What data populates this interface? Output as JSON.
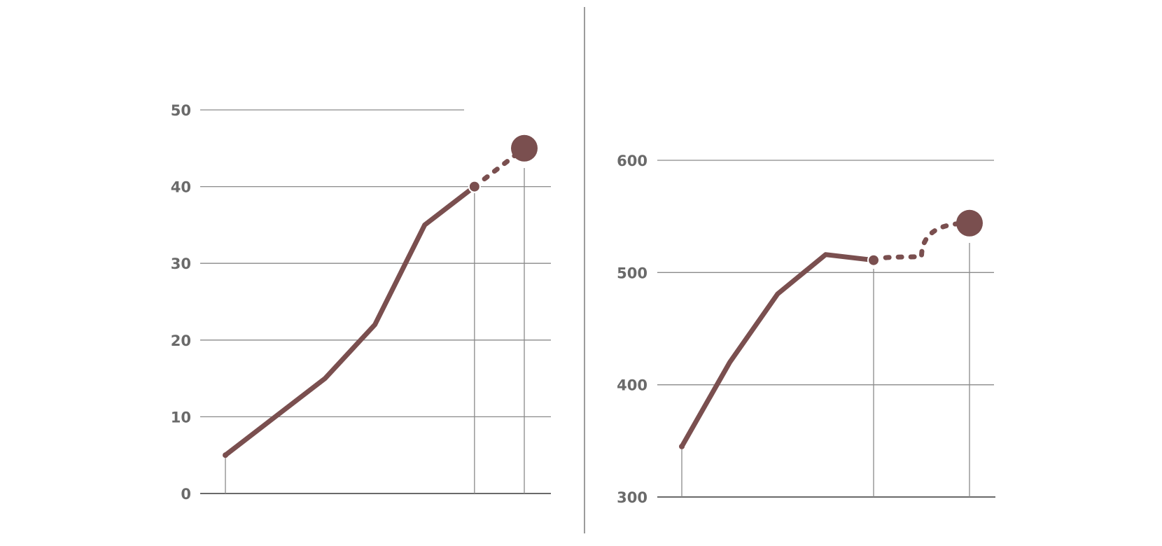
{
  "colors": {
    "series": "#7a4f4f",
    "grid": "#8a8a8a",
    "axis": "#6a6a6a",
    "label": "#6a6a6a"
  },
  "chart_data": [
    {
      "type": "line",
      "title": "",
      "xlabel": "",
      "ylabel": "",
      "ylim": [
        0,
        50
      ],
      "yticks": [
        0,
        10,
        20,
        30,
        40,
        50
      ],
      "yticklabels": [
        "0",
        "10",
        "20",
        "30",
        "40",
        "50"
      ],
      "grid": true,
      "series": [
        {
          "actual": [
            {
              "x": 0,
              "y": 5
            },
            {
              "x": 2,
              "y": 15
            },
            {
              "x": 3,
              "y": 22
            },
            {
              "x": 4,
              "y": 35
            },
            {
              "x": 5,
              "y": 40
            }
          ],
          "projected": [
            {
              "x": 5,
              "y": 40
            },
            {
              "x": 6,
              "y": 45
            }
          ]
        }
      ]
    },
    {
      "type": "line",
      "title": "",
      "xlabel": "",
      "ylabel": "",
      "ylim": [
        300,
        600
      ],
      "yticks": [
        300,
        400,
        500,
        600
      ],
      "yticklabels": [
        "300",
        "400",
        "500",
        "600"
      ],
      "grid": true,
      "series": [
        {
          "actual": [
            {
              "x": 0,
              "y": 345
            },
            {
              "x": 1,
              "y": 420
            },
            {
              "x": 2,
              "y": 481
            },
            {
              "x": 3,
              "y": 516
            },
            {
              "x": 4,
              "y": 511
            }
          ],
          "projected": [
            {
              "x": 4,
              "y": 511
            },
            {
              "x": 5,
              "y": 514
            },
            {
              "x": 6,
              "y": 544
            }
          ]
        }
      ]
    }
  ]
}
